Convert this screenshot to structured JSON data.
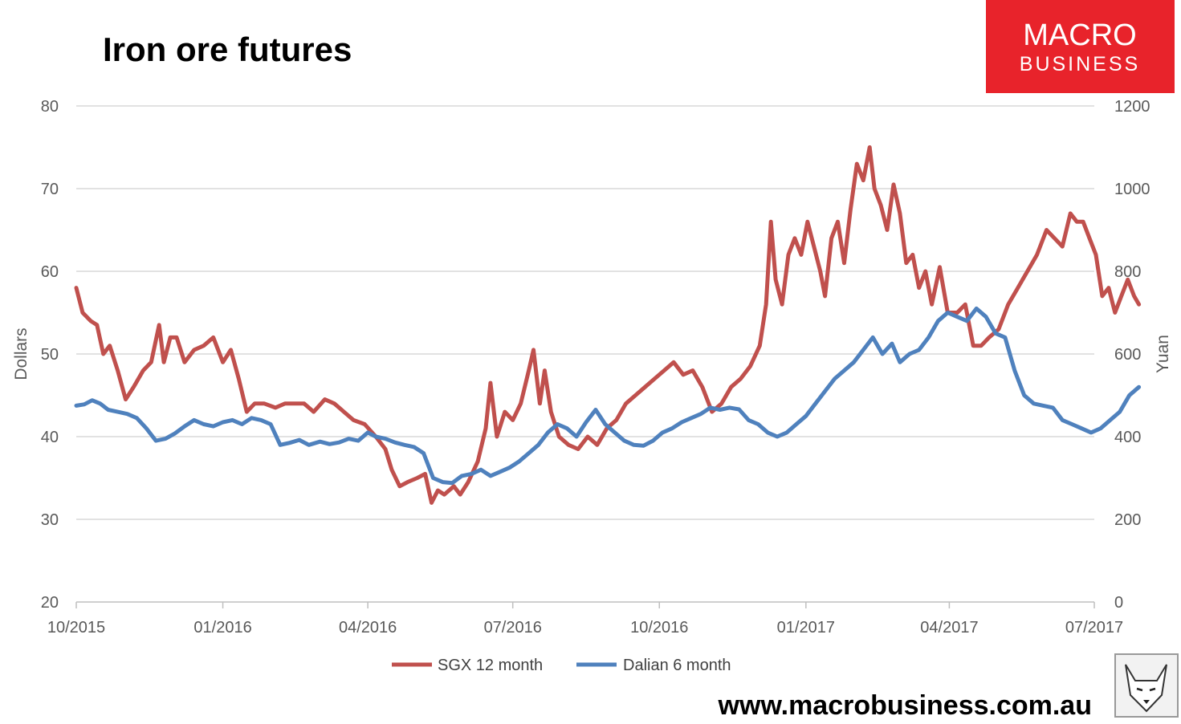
{
  "colors": {
    "sgx": "#c0504d",
    "dalian": "#4f81bd",
    "grid": "#d9d9d9",
    "logo_bg": "#e8232b"
  },
  "logo": {
    "line1": "MACRO",
    "line2": "BUSINESS"
  },
  "footer": {
    "url": "www.macrobusiness.com.au"
  },
  "mascot": {
    "icon": "wolf-icon"
  },
  "chart_data": {
    "type": "line",
    "title": "Iron ore futures",
    "ylabel_left": "Dollars",
    "ylabel_right": "Yuan",
    "ylim_left": [
      20,
      80
    ],
    "ylim_right": [
      0,
      1200
    ],
    "yticks_left": [
      "80",
      "70",
      "60",
      "50",
      "40",
      "30",
      "20"
    ],
    "yticks_right": [
      "1200",
      "1000",
      "800",
      "600",
      "400",
      "200",
      "0"
    ],
    "x_range": [
      "2015-10-01",
      "2017-07-01"
    ],
    "xticks": [
      "10/2015",
      "01/2016",
      "04/2016",
      "07/2016",
      "10/2016",
      "01/2017",
      "04/2017",
      "07/2017"
    ],
    "grid": "horizontal",
    "legend": "bottom",
    "series": [
      {
        "name": "SGX 12 month",
        "axis": "left",
        "points": [
          [
            "2015-10-01",
            58
          ],
          [
            "2015-10-05",
            55
          ],
          [
            "2015-10-10",
            54
          ],
          [
            "2015-10-14",
            53.5
          ],
          [
            "2015-10-18",
            50
          ],
          [
            "2015-10-22",
            51
          ],
          [
            "2015-10-27",
            48
          ],
          [
            "2015-11-01",
            44.5
          ],
          [
            "2015-11-06",
            46
          ],
          [
            "2015-11-12",
            48
          ],
          [
            "2015-11-17",
            49
          ],
          [
            "2015-11-22",
            53.5
          ],
          [
            "2015-11-25",
            49
          ],
          [
            "2015-11-29",
            52
          ],
          [
            "2015-12-03",
            52
          ],
          [
            "2015-12-08",
            49
          ],
          [
            "2015-12-14",
            50.5
          ],
          [
            "2015-12-20",
            51
          ],
          [
            "2015-12-26",
            52
          ],
          [
            "2016-01-01",
            49
          ],
          [
            "2016-01-06",
            50.5
          ],
          [
            "2016-01-11",
            47
          ],
          [
            "2016-01-16",
            43
          ],
          [
            "2016-01-21",
            44
          ],
          [
            "2016-01-27",
            44
          ],
          [
            "2016-02-03",
            43.5
          ],
          [
            "2016-02-09",
            44
          ],
          [
            "2016-02-15",
            44
          ],
          [
            "2016-02-21",
            44
          ],
          [
            "2016-02-27",
            43
          ],
          [
            "2016-03-05",
            44.5
          ],
          [
            "2016-03-11",
            44
          ],
          [
            "2016-03-17",
            43
          ],
          [
            "2016-03-23",
            42
          ],
          [
            "2016-03-30",
            41.5
          ],
          [
            "2016-04-06",
            40
          ],
          [
            "2016-04-12",
            38.5
          ],
          [
            "2016-04-16",
            36
          ],
          [
            "2016-04-21",
            34
          ],
          [
            "2016-04-26",
            34.5
          ],
          [
            "2016-05-02",
            35
          ],
          [
            "2016-05-07",
            35.5
          ],
          [
            "2016-05-11",
            32
          ],
          [
            "2016-05-15",
            33.5
          ],
          [
            "2016-05-19",
            33
          ],
          [
            "2016-05-25",
            34
          ],
          [
            "2016-05-29",
            33
          ],
          [
            "2016-06-03",
            34.5
          ],
          [
            "2016-06-09",
            37
          ],
          [
            "2016-06-14",
            41
          ],
          [
            "2016-06-17",
            46.5
          ],
          [
            "2016-06-21",
            40
          ],
          [
            "2016-06-26",
            43
          ],
          [
            "2016-07-01",
            42
          ],
          [
            "2016-07-06",
            44
          ],
          [
            "2016-07-11",
            48
          ],
          [
            "2016-07-14",
            50.5
          ],
          [
            "2016-07-18",
            44
          ],
          [
            "2016-07-21",
            48
          ],
          [
            "2016-07-25",
            43
          ],
          [
            "2016-07-30",
            40
          ],
          [
            "2016-08-05",
            39
          ],
          [
            "2016-08-11",
            38.5
          ],
          [
            "2016-08-17",
            40
          ],
          [
            "2016-08-23",
            39
          ],
          [
            "2016-08-29",
            41
          ],
          [
            "2016-09-04",
            42
          ],
          [
            "2016-09-10",
            44
          ],
          [
            "2016-09-16",
            45
          ],
          [
            "2016-09-22",
            46
          ],
          [
            "2016-09-28",
            47
          ],
          [
            "2016-10-04",
            48
          ],
          [
            "2016-10-10",
            49
          ],
          [
            "2016-10-16",
            47.5
          ],
          [
            "2016-10-22",
            48
          ],
          [
            "2016-10-28",
            46
          ],
          [
            "2016-11-03",
            43
          ],
          [
            "2016-11-09",
            44
          ],
          [
            "2016-11-15",
            46
          ],
          [
            "2016-11-21",
            47
          ],
          [
            "2016-11-27",
            48.5
          ],
          [
            "2016-12-03",
            51
          ],
          [
            "2016-12-07",
            56
          ],
          [
            "2016-12-10",
            66
          ],
          [
            "2016-12-13",
            59
          ],
          [
            "2016-12-17",
            56
          ],
          [
            "2016-12-21",
            62
          ],
          [
            "2016-12-25",
            64
          ],
          [
            "2016-12-29",
            62
          ],
          [
            "2017-01-02",
            66
          ],
          [
            "2017-01-06",
            63
          ],
          [
            "2017-01-10",
            60
          ],
          [
            "2017-01-13",
            57
          ],
          [
            "2017-01-17",
            64
          ],
          [
            "2017-01-21",
            66
          ],
          [
            "2017-01-25",
            61
          ],
          [
            "2017-01-29",
            67.5
          ],
          [
            "2017-02-02",
            73
          ],
          [
            "2017-02-06",
            71
          ],
          [
            "2017-02-10",
            75
          ],
          [
            "2017-02-13",
            70
          ],
          [
            "2017-02-17",
            68
          ],
          [
            "2017-02-21",
            65
          ],
          [
            "2017-02-25",
            70.5
          ],
          [
            "2017-03-01",
            67
          ],
          [
            "2017-03-05",
            61
          ],
          [
            "2017-03-09",
            62
          ],
          [
            "2017-03-13",
            58
          ],
          [
            "2017-03-17",
            60
          ],
          [
            "2017-03-21",
            56
          ],
          [
            "2017-03-26",
            60.5
          ],
          [
            "2017-03-31",
            55
          ],
          [
            "2017-04-06",
            55
          ],
          [
            "2017-04-11",
            56
          ],
          [
            "2017-04-16",
            51
          ],
          [
            "2017-04-21",
            51
          ],
          [
            "2017-04-26",
            52
          ],
          [
            "2017-05-02",
            53
          ],
          [
            "2017-05-08",
            56
          ],
          [
            "2017-05-14",
            58
          ],
          [
            "2017-05-20",
            60
          ],
          [
            "2017-05-26",
            62
          ],
          [
            "2017-06-01",
            65
          ],
          [
            "2017-06-06",
            64
          ],
          [
            "2017-06-11",
            63
          ],
          [
            "2017-06-16",
            67
          ],
          [
            "2017-06-20",
            66
          ],
          [
            "2017-06-24",
            66
          ],
          [
            "2017-06-28",
            64
          ],
          [
            "2017-07-02",
            62
          ],
          [
            "2017-07-06",
            57
          ],
          [
            "2017-07-10",
            58
          ],
          [
            "2017-07-14",
            55
          ],
          [
            "2017-07-18",
            57
          ],
          [
            "2017-07-22",
            59
          ],
          [
            "2017-07-26",
            57
          ],
          [
            "2017-07-29",
            56
          ]
        ]
      },
      {
        "name": "Dalian 6 month",
        "axis": "right",
        "points": [
          [
            "2015-10-01",
            475
          ],
          [
            "2015-10-06",
            478
          ],
          [
            "2015-10-11",
            488
          ],
          [
            "2015-10-16",
            480
          ],
          [
            "2015-10-21",
            465
          ],
          [
            "2015-10-27",
            460
          ],
          [
            "2015-11-02",
            455
          ],
          [
            "2015-11-08",
            445
          ],
          [
            "2015-11-14",
            420
          ],
          [
            "2015-11-20",
            390
          ],
          [
            "2015-11-26",
            395
          ],
          [
            "2015-12-02",
            408
          ],
          [
            "2015-12-08",
            425
          ],
          [
            "2015-12-14",
            440
          ],
          [
            "2015-12-20",
            430
          ],
          [
            "2015-12-26",
            425
          ],
          [
            "2016-01-01",
            435
          ],
          [
            "2016-01-07",
            440
          ],
          [
            "2016-01-13",
            430
          ],
          [
            "2016-01-19",
            445
          ],
          [
            "2016-01-25",
            440
          ],
          [
            "2016-01-31",
            430
          ],
          [
            "2016-02-06",
            380
          ],
          [
            "2016-02-12",
            385
          ],
          [
            "2016-02-18",
            392
          ],
          [
            "2016-02-24",
            380
          ],
          [
            "2016-03-02",
            388
          ],
          [
            "2016-03-08",
            382
          ],
          [
            "2016-03-14",
            386
          ],
          [
            "2016-03-20",
            395
          ],
          [
            "2016-03-26",
            390
          ],
          [
            "2016-04-01",
            410
          ],
          [
            "2016-04-06",
            400
          ],
          [
            "2016-04-12",
            395
          ],
          [
            "2016-04-18",
            386
          ],
          [
            "2016-04-24",
            380
          ],
          [
            "2016-04-30",
            375
          ],
          [
            "2016-05-06",
            360
          ],
          [
            "2016-05-12",
            300
          ],
          [
            "2016-05-18",
            290
          ],
          [
            "2016-05-24",
            288
          ],
          [
            "2016-05-30",
            305
          ],
          [
            "2016-06-05",
            310
          ],
          [
            "2016-06-11",
            320
          ],
          [
            "2016-06-17",
            305
          ],
          [
            "2016-06-23",
            315
          ],
          [
            "2016-06-29",
            325
          ],
          [
            "2016-07-05",
            340
          ],
          [
            "2016-07-11",
            360
          ],
          [
            "2016-07-17",
            380
          ],
          [
            "2016-07-23",
            410
          ],
          [
            "2016-07-29",
            430
          ],
          [
            "2016-08-04",
            420
          ],
          [
            "2016-08-10",
            400
          ],
          [
            "2016-08-16",
            435
          ],
          [
            "2016-08-22",
            465
          ],
          [
            "2016-08-28",
            430
          ],
          [
            "2016-09-03",
            410
          ],
          [
            "2016-09-09",
            390
          ],
          [
            "2016-09-15",
            380
          ],
          [
            "2016-09-21",
            378
          ],
          [
            "2016-09-27",
            390
          ],
          [
            "2016-10-03",
            410
          ],
          [
            "2016-10-09",
            420
          ],
          [
            "2016-10-15",
            435
          ],
          [
            "2016-10-21",
            445
          ],
          [
            "2016-10-27",
            455
          ],
          [
            "2016-11-02",
            470
          ],
          [
            "2016-11-08",
            465
          ],
          [
            "2016-11-14",
            470
          ],
          [
            "2016-11-20",
            466
          ],
          [
            "2016-11-26",
            440
          ],
          [
            "2016-12-02",
            430
          ],
          [
            "2016-12-08",
            410
          ],
          [
            "2016-12-14",
            400
          ],
          [
            "2016-12-20",
            410
          ],
          [
            "2016-12-26",
            430
          ],
          [
            "2017-01-01",
            450
          ],
          [
            "2017-01-07",
            480
          ],
          [
            "2017-01-13",
            510
          ],
          [
            "2017-01-19",
            540
          ],
          [
            "2017-01-25",
            560
          ],
          [
            "2017-01-31",
            580
          ],
          [
            "2017-02-06",
            610
          ],
          [
            "2017-02-12",
            640
          ],
          [
            "2017-02-18",
            600
          ],
          [
            "2017-02-24",
            625
          ],
          [
            "2017-03-01",
            580
          ],
          [
            "2017-03-07",
            600
          ],
          [
            "2017-03-13",
            610
          ],
          [
            "2017-03-19",
            640
          ],
          [
            "2017-03-25",
            680
          ],
          [
            "2017-03-31",
            700
          ],
          [
            "2017-04-06",
            690
          ],
          [
            "2017-04-12",
            680
          ],
          [
            "2017-04-18",
            710
          ],
          [
            "2017-04-24",
            690
          ],
          [
            "2017-04-30",
            650
          ],
          [
            "2017-05-06",
            640
          ],
          [
            "2017-05-12",
            560
          ],
          [
            "2017-05-18",
            500
          ],
          [
            "2017-05-24",
            480
          ],
          [
            "2017-05-30",
            475
          ],
          [
            "2017-06-05",
            470
          ],
          [
            "2017-06-11",
            440
          ],
          [
            "2017-06-17",
            430
          ],
          [
            "2017-06-23",
            420
          ],
          [
            "2017-06-29",
            410
          ],
          [
            "2017-07-05",
            420
          ],
          [
            "2017-07-11",
            440
          ],
          [
            "2017-07-17",
            460
          ],
          [
            "2017-07-23",
            500
          ],
          [
            "2017-07-29",
            520
          ]
        ]
      }
    ]
  }
}
